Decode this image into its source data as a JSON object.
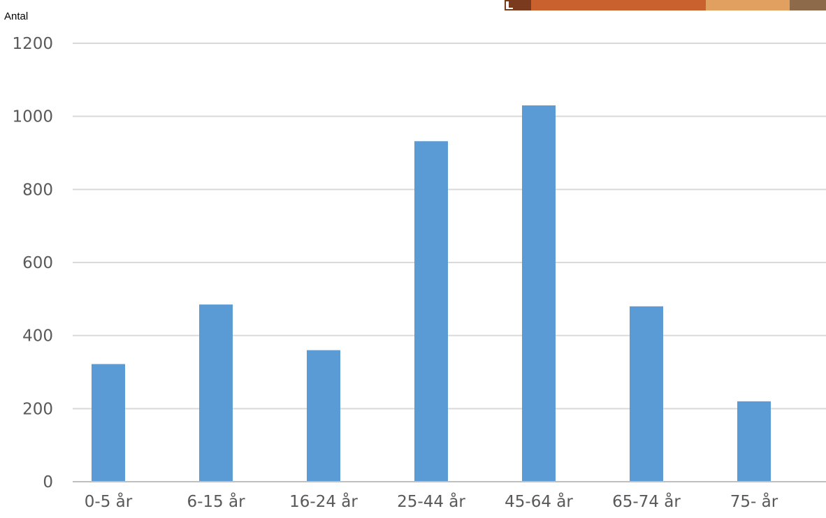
{
  "chart_data": {
    "type": "bar",
    "title": "",
    "xlabel": "",
    "ylabel": "Antal",
    "categories": [
      "0-5 år",
      "6-15 år",
      "16-24 år",
      "25-44 år",
      "45-64 år",
      "65-74 år",
      "75- år"
    ],
    "series": [
      {
        "values": [
          322,
          485,
          360,
          932,
          1030,
          480,
          220
        ]
      }
    ],
    "ylim": [
      0,
      1200
    ],
    "yticks": [
      0,
      200,
      400,
      600,
      800,
      1000,
      1200
    ],
    "grid": true,
    "legend": "none",
    "colors": {
      "bar": "#5B9BD5",
      "grid": "#D9D9D9",
      "axis": "#BFBFBF",
      "tick_text": "#595959",
      "corner_photo": "#C8612E"
    }
  }
}
